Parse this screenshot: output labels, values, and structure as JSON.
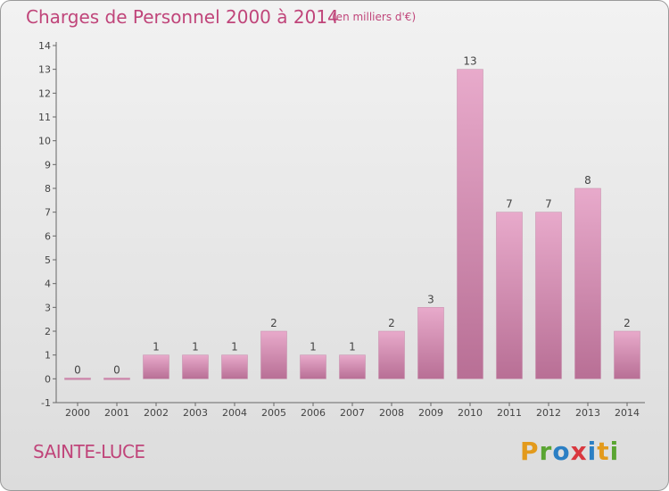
{
  "title": "Charges de Personnel 2000 à 2014",
  "subtitle": "(en milliers d'€)",
  "commune": "SAINTE-LUCE",
  "brand": "Proxiti",
  "colors": {
    "bar_top": "#e8aacb",
    "bar_bottom": "#b86f95",
    "text_accent": "#c0457a"
  },
  "chart_data": {
    "type": "bar",
    "title": "Charges de Personnel 2000 à 2014",
    "subtitle": "(en milliers d'€)",
    "categories": [
      "2000",
      "2001",
      "2002",
      "2003",
      "2004",
      "2005",
      "2006",
      "2007",
      "2008",
      "2009",
      "2010",
      "2011",
      "2012",
      "2013",
      "2014"
    ],
    "values": [
      0,
      0,
      1,
      1,
      1,
      2,
      1,
      1,
      2,
      3,
      13,
      7,
      7,
      8,
      2
    ],
    "ylim": [
      -1,
      14
    ],
    "yticks": [
      -1,
      0,
      1,
      2,
      3,
      4,
      5,
      6,
      7,
      8,
      9,
      10,
      11,
      12,
      13,
      14
    ],
    "grid": false,
    "legend": "none"
  }
}
